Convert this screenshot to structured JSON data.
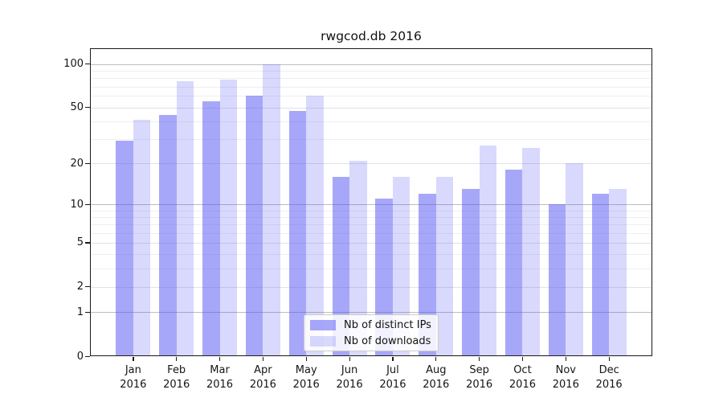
{
  "chart_data": {
    "type": "bar",
    "title": "rwgcod.db 2016",
    "categories": [
      "Jan 2016",
      "Feb 2016",
      "Mar 2016",
      "Apr 2016",
      "May 2016",
      "Jun 2016",
      "Jul 2016",
      "Aug 2016",
      "Sep 2016",
      "Oct 2016",
      "Nov 2016",
      "Dec 2016"
    ],
    "series": [
      {
        "name": "Nb of distinct IPs",
        "key": "distinct-ips",
        "color": "rgba(80,80,245,0.5)",
        "values": [
          29,
          44,
          55,
          60,
          47,
          16,
          11,
          12,
          13,
          18,
          10,
          12
        ]
      },
      {
        "name": "Nb of downloads",
        "key": "downloads",
        "color": "rgba(80,80,245,0.22)",
        "values": [
          41,
          76,
          78,
          100,
          60,
          21,
          16,
          16,
          27,
          26,
          20,
          13
        ]
      }
    ],
    "yscale": "log1p",
    "ylim": [
      0,
      128
    ],
    "yticks": [
      0,
      1,
      2,
      5,
      10,
      20,
      50,
      100
    ],
    "yticks_minor": [
      3,
      4,
      6,
      7,
      8,
      9,
      30,
      40,
      60,
      70,
      80,
      90
    ],
    "grid": true,
    "legend_position": "lower-center-inside"
  }
}
